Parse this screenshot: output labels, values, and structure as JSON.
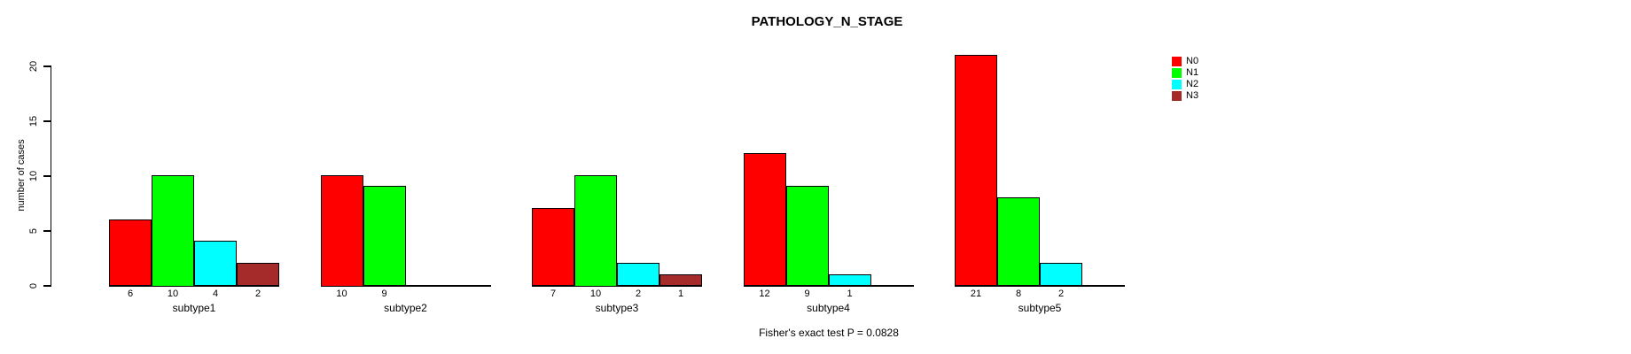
{
  "chart_data": {
    "type": "bar",
    "title": "PATHOLOGY_N_STAGE",
    "ylabel": "number of cases",
    "xlabel": "",
    "categories": [
      "subtype1",
      "subtype2",
      "subtype3",
      "subtype4",
      "subtype5"
    ],
    "series": [
      {
        "name": "N0",
        "color": "#FF0000",
        "values": [
          6,
          10,
          7,
          12,
          21
        ]
      },
      {
        "name": "N1",
        "color": "#00FF00",
        "values": [
          10,
          9,
          10,
          9,
          8
        ]
      },
      {
        "name": "N2",
        "color": "#00FFFF",
        "values": [
          4,
          0,
          2,
          1,
          2
        ]
      },
      {
        "name": "N3",
        "color": "#A52A2A",
        "values": [
          2,
          0,
          1,
          0,
          0
        ]
      }
    ],
    "ylim": [
      0,
      20
    ],
    "yticks": [
      0,
      5,
      10,
      15,
      20
    ],
    "bar_value_labels": true,
    "grid": false,
    "legend_position": "right",
    "annotation": "Fisher's exact test P = 0.0828"
  }
}
